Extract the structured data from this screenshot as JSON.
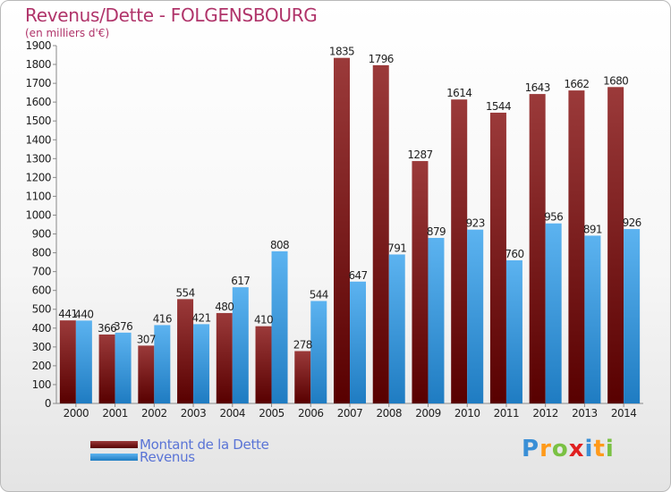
{
  "header": {
    "title": "Revenus/Dette - FOLGENSBOURG",
    "subtitle": "(en milliers d'€)"
  },
  "chart_data": {
    "type": "bar",
    "title": "Revenus/Dette - FOLGENSBOURG",
    "subtitle": "(en milliers d'€)",
    "xlabel": "",
    "ylabel": "",
    "ylim": [
      0,
      1900
    ],
    "ytick_step": 100,
    "grid": false,
    "legend_position": "bottom-left",
    "categories": [
      "2000",
      "2001",
      "2002",
      "2003",
      "2004",
      "2005",
      "2006",
      "2007",
      "2008",
      "2009",
      "2010",
      "2011",
      "2012",
      "2013",
      "2014"
    ],
    "series": [
      {
        "name": "Montant de la Dette",
        "color": "#7a1616",
        "values": [
          441,
          366,
          307,
          554,
          480,
          410,
          278,
          1835,
          1796,
          1287,
          1614,
          1544,
          1643,
          1662,
          1680
        ]
      },
      {
        "name": "Revenus",
        "color": "#3b96d8",
        "values": [
          440,
          376,
          416,
          421,
          617,
          808,
          544,
          647,
          791,
          879,
          923,
          760,
          956,
          891,
          926
        ]
      }
    ]
  },
  "legend": {
    "debt_label": "Montant de la Dette",
    "revenue_label": "Revenus"
  },
  "logo": {
    "text": "Proxiti",
    "letter_colors": [
      "#3a8fd6",
      "#ff9a1a",
      "#7ac143",
      "#e02020",
      "#3a8fd6",
      "#ff9a1a",
      "#7ac143"
    ]
  }
}
